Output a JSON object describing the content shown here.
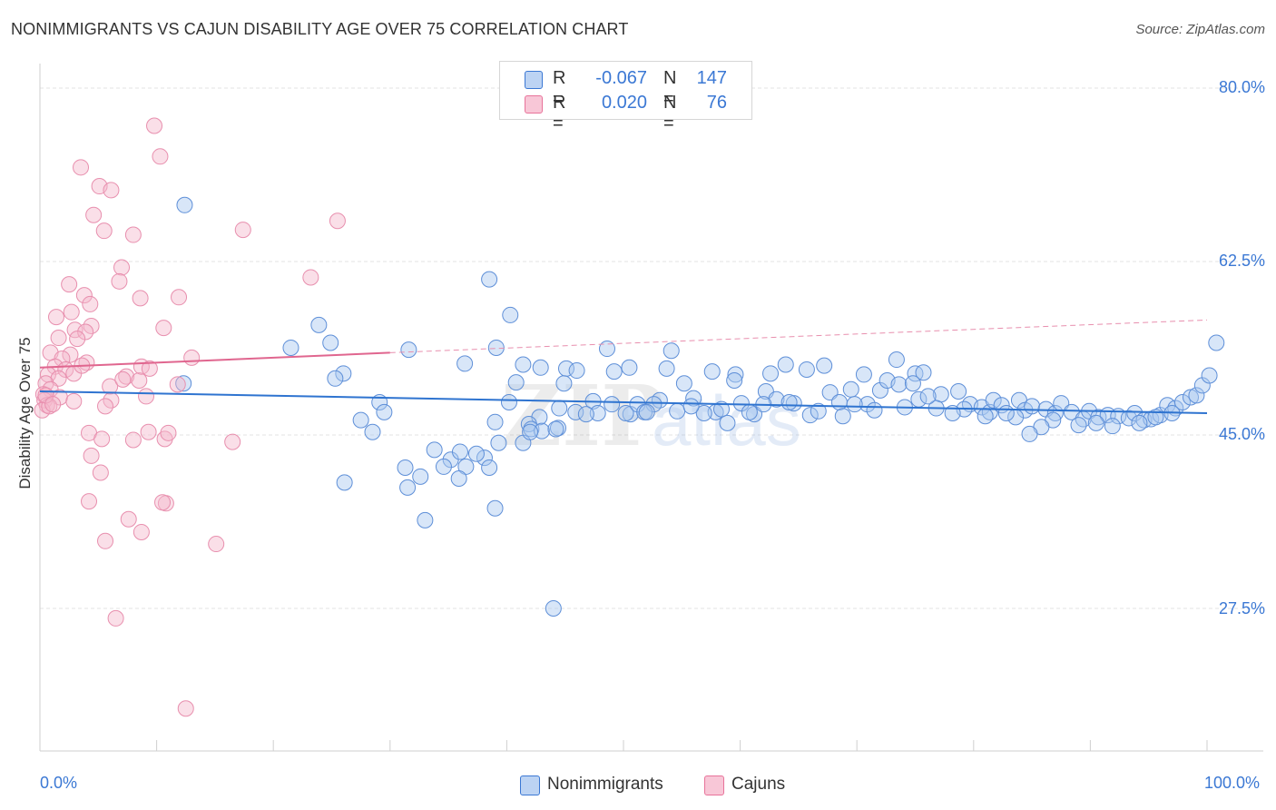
{
  "header": {
    "title": "NONIMMIGRANTS VS CAJUN DISABILITY AGE OVER 75 CORRELATION CHART",
    "source": "Source: ZipAtlas.com"
  },
  "legend_top": {
    "rows": [
      {
        "r_label": "R =",
        "r_value": "-0.067",
        "n_label": "N =",
        "n_value": "147"
      },
      {
        "r_label": "R =",
        "r_value": "0.020",
        "n_label": "N =",
        "n_value": "76"
      }
    ]
  },
  "legend_bottom": [
    "Nonimmigrants",
    "Cajuns"
  ],
  "watermark": {
    "zip": "ZIP",
    "atlas": "atlas"
  },
  "axis": {
    "ylabel": "Disability Age Over 75",
    "y_ticks": [
      "80.0%",
      "62.5%",
      "45.0%",
      "27.5%"
    ],
    "x_ticks": [
      "0.0%",
      "100.0%"
    ]
  },
  "colors": {
    "blue": "#3b78d4",
    "blue_fill": "#a9c8f0",
    "pink": "#e8739a",
    "pink_fill": "#f5b8cc"
  },
  "chart_data": {
    "type": "scatter",
    "xlim": [
      0,
      100
    ],
    "ylim": [
      10,
      83
    ],
    "y_gridlines": [
      80.0,
      62.5,
      45.0,
      27.5
    ],
    "series": [
      {
        "name": "Nonimmigrants",
        "color": "#3b78d4",
        "trend": {
          "x0": 0,
          "y0": 49.4,
          "x1": 100,
          "y1": 47.2
        },
        "points": [
          [
            12.4,
            68.2
          ],
          [
            38.5,
            60.7
          ],
          [
            40.3,
            57.1
          ],
          [
            23.9,
            56.1
          ],
          [
            24.9,
            54.3
          ],
          [
            21.5,
            53.8
          ],
          [
            31.6,
            53.6
          ],
          [
            39.1,
            53.8
          ],
          [
            48.6,
            53.7
          ],
          [
            54.1,
            53.5
          ],
          [
            26.0,
            51.2
          ],
          [
            25.3,
            50.7
          ],
          [
            36.4,
            52.2
          ],
          [
            41.4,
            52.1
          ],
          [
            42.9,
            51.8
          ],
          [
            45.1,
            51.7
          ],
          [
            46.0,
            51.5
          ],
          [
            49.2,
            51.4
          ],
          [
            50.5,
            51.8
          ],
          [
            53.7,
            51.7
          ],
          [
            57.6,
            51.4
          ],
          [
            59.6,
            51.1
          ],
          [
            62.6,
            51.2
          ],
          [
            63.9,
            52.1
          ],
          [
            65.7,
            51.6
          ],
          [
            67.2,
            52.0
          ],
          [
            70.6,
            51.1
          ],
          [
            73.4,
            52.6
          ],
          [
            75.0,
            51.2
          ],
          [
            75.7,
            51.3
          ],
          [
            12.3,
            50.2
          ],
          [
            29.1,
            48.3
          ],
          [
            29.5,
            47.3
          ],
          [
            27.5,
            46.5
          ],
          [
            28.5,
            45.3
          ],
          [
            40.2,
            48.3
          ],
          [
            40.8,
            50.3
          ],
          [
            44.9,
            50.2
          ],
          [
            47.4,
            48.4
          ],
          [
            45.9,
            47.3
          ],
          [
            47.8,
            47.2
          ],
          [
            50.6,
            47.1
          ],
          [
            51.2,
            48.1
          ],
          [
            53.1,
            48.5
          ],
          [
            55.2,
            50.2
          ],
          [
            56.0,
            48.7
          ],
          [
            57.9,
            47.3
          ],
          [
            59.5,
            50.5
          ],
          [
            60.1,
            48.2
          ],
          [
            61.2,
            47.1
          ],
          [
            62.2,
            49.4
          ],
          [
            63.1,
            48.6
          ],
          [
            64.6,
            48.2
          ],
          [
            66.0,
            47.0
          ],
          [
            67.7,
            49.3
          ],
          [
            68.5,
            48.3
          ],
          [
            69.5,
            49.6
          ],
          [
            70.9,
            48.1
          ],
          [
            72.0,
            49.5
          ],
          [
            72.6,
            50.5
          ],
          [
            73.6,
            50.1
          ],
          [
            74.8,
            50.2
          ],
          [
            75.3,
            48.6
          ],
          [
            77.2,
            49.1
          ],
          [
            78.7,
            49.4
          ],
          [
            79.7,
            48.1
          ],
          [
            80.7,
            47.8
          ],
          [
            81.4,
            47.3
          ],
          [
            81.7,
            48.5
          ],
          [
            82.4,
            48.0
          ],
          [
            83.9,
            48.5
          ],
          [
            84.4,
            47.5
          ],
          [
            85.0,
            47.9
          ],
          [
            86.2,
            47.6
          ],
          [
            87.0,
            47.2
          ],
          [
            87.5,
            48.2
          ],
          [
            88.4,
            47.3
          ],
          [
            89.4,
            46.6
          ],
          [
            89.9,
            47.4
          ],
          [
            90.7,
            46.8
          ],
          [
            91.5,
            47.0
          ],
          [
            92.4,
            46.9
          ],
          [
            93.3,
            46.7
          ],
          [
            93.8,
            47.2
          ],
          [
            94.6,
            46.5
          ],
          [
            95.2,
            46.6
          ],
          [
            96.0,
            47.0
          ],
          [
            96.6,
            48.0
          ],
          [
            97.3,
            47.7
          ],
          [
            97.9,
            48.3
          ],
          [
            98.6,
            48.8
          ],
          [
            99.1,
            49.0
          ],
          [
            99.6,
            50.0
          ],
          [
            100.2,
            51.0
          ],
          [
            100.8,
            54.3
          ],
          [
            97.0,
            47.2
          ],
          [
            95.6,
            46.8
          ],
          [
            94.2,
            46.2
          ],
          [
            91.9,
            45.9
          ],
          [
            90.5,
            46.2
          ],
          [
            89.0,
            46.0
          ],
          [
            86.8,
            46.5
          ],
          [
            85.8,
            45.8
          ],
          [
            84.8,
            45.1
          ],
          [
            83.6,
            46.8
          ],
          [
            82.8,
            47.2
          ],
          [
            81.0,
            46.9
          ],
          [
            79.2,
            47.6
          ],
          [
            78.2,
            47.2
          ],
          [
            76.8,
            47.7
          ],
          [
            76.1,
            48.9
          ],
          [
            74.1,
            47.8
          ],
          [
            71.5,
            47.5
          ],
          [
            69.8,
            48.1
          ],
          [
            68.8,
            46.9
          ],
          [
            66.7,
            47.4
          ],
          [
            64.2,
            48.3
          ],
          [
            62.0,
            48.1
          ],
          [
            60.8,
            47.3
          ],
          [
            58.4,
            47.6
          ],
          [
            56.9,
            47.2
          ],
          [
            54.6,
            47.4
          ],
          [
            52.6,
            48.1
          ],
          [
            51.8,
            47.3
          ],
          [
            50.2,
            47.2
          ],
          [
            49.0,
            48.1
          ],
          [
            46.8,
            47.1
          ],
          [
            44.5,
            47.7
          ],
          [
            42.8,
            46.8
          ],
          [
            41.9,
            46.1
          ],
          [
            39.3,
            44.2
          ],
          [
            38.1,
            42.7
          ],
          [
            36.5,
            41.8
          ],
          [
            35.2,
            42.5
          ],
          [
            35.9,
            40.6
          ],
          [
            34.6,
            41.8
          ],
          [
            33.8,
            43.5
          ],
          [
            32.6,
            40.8
          ],
          [
            31.3,
            41.7
          ],
          [
            26.1,
            40.2
          ],
          [
            42.1,
            45.6
          ],
          [
            44.4,
            45.7
          ],
          [
            43.0,
            45.4
          ],
          [
            41.4,
            44.2
          ],
          [
            39.0,
            46.3
          ],
          [
            42.0,
            45.3
          ],
          [
            44.2,
            45.6
          ],
          [
            31.5,
            39.7
          ],
          [
            39.0,
            37.6
          ],
          [
            44.0,
            27.5
          ],
          [
            33.0,
            36.4
          ],
          [
            36.0,
            43.3
          ],
          [
            37.4,
            43.1
          ],
          [
            38.5,
            41.7
          ],
          [
            52.0,
            47.3
          ],
          [
            55.8,
            47.9
          ],
          [
            58.9,
            46.2
          ]
        ]
      },
      {
        "name": "Cajuns",
        "color": "#e8739a",
        "trend_solid": {
          "x0": 0,
          "y0": 51.8,
          "x1": 30,
          "y1": 53.3
        },
        "trend_dashed": {
          "x0": 30,
          "y0": 53.3,
          "x1": 100,
          "y1": 56.6
        },
        "points": [
          [
            9.8,
            76.2
          ],
          [
            10.3,
            73.1
          ],
          [
            3.5,
            72.0
          ],
          [
            5.1,
            70.1
          ],
          [
            6.1,
            69.7
          ],
          [
            4.6,
            67.2
          ],
          [
            8.0,
            65.2
          ],
          [
            5.5,
            65.6
          ],
          [
            17.4,
            65.7
          ],
          [
            25.5,
            66.6
          ],
          [
            7.0,
            61.9
          ],
          [
            6.8,
            60.5
          ],
          [
            2.5,
            60.2
          ],
          [
            3.8,
            59.1
          ],
          [
            8.6,
            58.8
          ],
          [
            11.9,
            58.9
          ],
          [
            4.3,
            58.2
          ],
          [
            2.7,
            57.4
          ],
          [
            1.4,
            56.9
          ],
          [
            4.4,
            56.0
          ],
          [
            3.0,
            55.6
          ],
          [
            3.9,
            55.4
          ],
          [
            10.6,
            55.8
          ],
          [
            1.6,
            54.8
          ],
          [
            3.2,
            54.7
          ],
          [
            23.2,
            60.9
          ],
          [
            0.9,
            53.3
          ],
          [
            2.6,
            53.1
          ],
          [
            1.9,
            52.7
          ],
          [
            4.0,
            52.3
          ],
          [
            1.3,
            51.9
          ],
          [
            2.2,
            51.6
          ],
          [
            2.9,
            51.2
          ],
          [
            0.7,
            51.1
          ],
          [
            1.6,
            50.7
          ],
          [
            0.5,
            50.2
          ],
          [
            0.9,
            49.6
          ],
          [
            0.3,
            49.1
          ],
          [
            1.7,
            48.8
          ],
          [
            0.4,
            48.5
          ],
          [
            0.6,
            48.0
          ],
          [
            0.2,
            47.5
          ],
          [
            0.8,
            47.9
          ],
          [
            2.9,
            48.4
          ],
          [
            6.0,
            49.9
          ],
          [
            7.4,
            50.9
          ],
          [
            8.5,
            50.5
          ],
          [
            9.1,
            48.9
          ],
          [
            8.7,
            51.9
          ],
          [
            9.4,
            51.7
          ],
          [
            13.0,
            52.8
          ],
          [
            6.1,
            48.5
          ],
          [
            7.1,
            50.6
          ],
          [
            5.6,
            47.9
          ],
          [
            8.0,
            44.5
          ],
          [
            9.3,
            45.3
          ],
          [
            10.7,
            44.6
          ],
          [
            4.2,
            45.2
          ],
          [
            5.3,
            44.6
          ],
          [
            16.5,
            44.3
          ],
          [
            4.4,
            42.9
          ],
          [
            5.2,
            41.2
          ],
          [
            4.2,
            38.3
          ],
          [
            10.8,
            38.1
          ],
          [
            10.5,
            38.2
          ],
          [
            7.6,
            36.5
          ],
          [
            8.7,
            35.2
          ],
          [
            5.6,
            34.3
          ],
          [
            15.1,
            34.0
          ],
          [
            6.5,
            26.5
          ],
          [
            12.5,
            17.4
          ],
          [
            3.6,
            52.0
          ],
          [
            0.5,
            49.0
          ],
          [
            1.1,
            48.1
          ],
          [
            11.0,
            45.2
          ],
          [
            11.8,
            50.1
          ]
        ]
      }
    ]
  }
}
